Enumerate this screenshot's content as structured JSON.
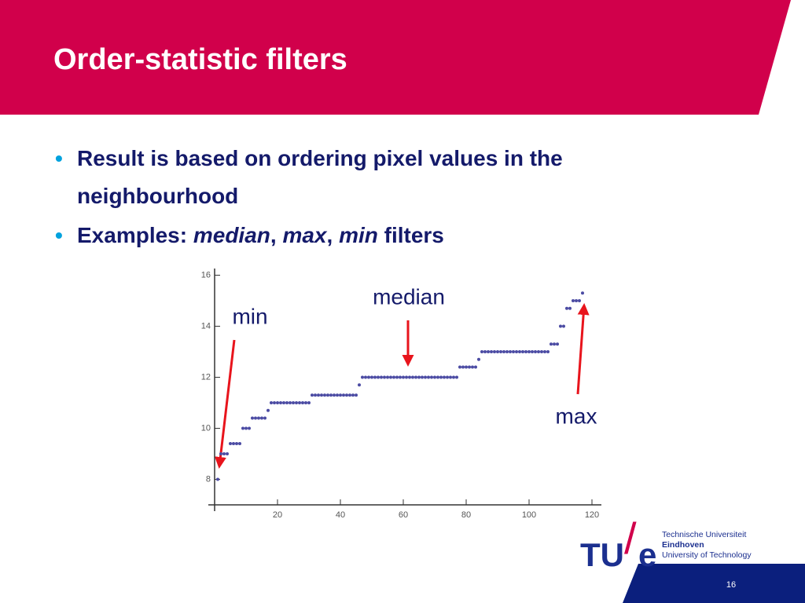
{
  "slide": {
    "title": "Order-statistic filters",
    "page_number": "16"
  },
  "bullets": [
    [
      {
        "text": "Result is based on ordering pixel values in the neighbourhood",
        "italic": false
      }
    ],
    [
      {
        "text": "Examples: ",
        "italic": false
      },
      {
        "text": "median",
        "italic": true
      },
      {
        "text": ", ",
        "italic": false
      },
      {
        "text": "max",
        "italic": true
      },
      {
        "text": ", ",
        "italic": false
      },
      {
        "text": "min",
        "italic": true
      },
      {
        "text": " filters",
        "italic": false
      }
    ]
  ],
  "chart_data": {
    "type": "scatter",
    "color": "#4b4ba3",
    "x": [
      1,
      2,
      3,
      4,
      5,
      6,
      7,
      8,
      9,
      10,
      11,
      12,
      13,
      14,
      15,
      16,
      17,
      18,
      19,
      20,
      21,
      22,
      23,
      24,
      25,
      26,
      27,
      28,
      29,
      30,
      31,
      32,
      33,
      34,
      35,
      36,
      37,
      38,
      39,
      40,
      41,
      42,
      43,
      44,
      45,
      46,
      47,
      48,
      49,
      50,
      51,
      52,
      53,
      54,
      55,
      56,
      57,
      58,
      59,
      60,
      61,
      62,
      63,
      64,
      65,
      66,
      67,
      68,
      69,
      70,
      71,
      72,
      73,
      74,
      75,
      76,
      77,
      78,
      79,
      80,
      81,
      82,
      83,
      84,
      85,
      86,
      87,
      88,
      89,
      90,
      91,
      92,
      93,
      94,
      95,
      96,
      97,
      98,
      99,
      100,
      101,
      102,
      103,
      104,
      105,
      106,
      107,
      108,
      109,
      110,
      111,
      112,
      113,
      114,
      115,
      116,
      117
    ],
    "values": [
      8,
      9,
      9,
      9,
      9.4,
      9.4,
      9.4,
      9.4,
      10,
      10,
      10,
      10.4,
      10.4,
      10.4,
      10.4,
      10.4,
      10.7,
      11,
      11,
      11,
      11,
      11,
      11,
      11,
      11,
      11,
      11,
      11,
      11,
      11,
      11.3,
      11.3,
      11.3,
      11.3,
      11.3,
      11.3,
      11.3,
      11.3,
      11.3,
      11.3,
      11.3,
      11.3,
      11.3,
      11.3,
      11.3,
      11.7,
      12,
      12,
      12,
      12,
      12,
      12,
      12,
      12,
      12,
      12,
      12,
      12,
      12,
      12,
      12,
      12,
      12,
      12,
      12,
      12,
      12,
      12,
      12,
      12,
      12,
      12,
      12,
      12,
      12,
      12,
      12,
      12.4,
      12.4,
      12.4,
      12.4,
      12.4,
      12.4,
      12.7,
      13,
      13,
      13,
      13,
      13,
      13,
      13,
      13,
      13,
      13,
      13,
      13,
      13,
      13,
      13,
      13,
      13,
      13,
      13,
      13,
      13,
      13,
      13.3,
      13.3,
      13.3,
      14,
      14,
      14.7,
      14.7,
      15,
      15,
      15,
      15.3
    ],
    "xlim": [
      0,
      123
    ],
    "ylim": [
      7,
      16.2
    ],
    "xticks": [
      20,
      40,
      60,
      80,
      100,
      120
    ],
    "yticks": [
      8,
      10,
      12,
      14,
      16
    ],
    "annotations": [
      "min",
      "median",
      "max"
    ]
  },
  "logo": {
    "mark_left": "TU",
    "slash": "/",
    "mark_right": "e",
    "lines": [
      "Technische Universiteit",
      "Eindhoven",
      "University of Technology"
    ]
  }
}
